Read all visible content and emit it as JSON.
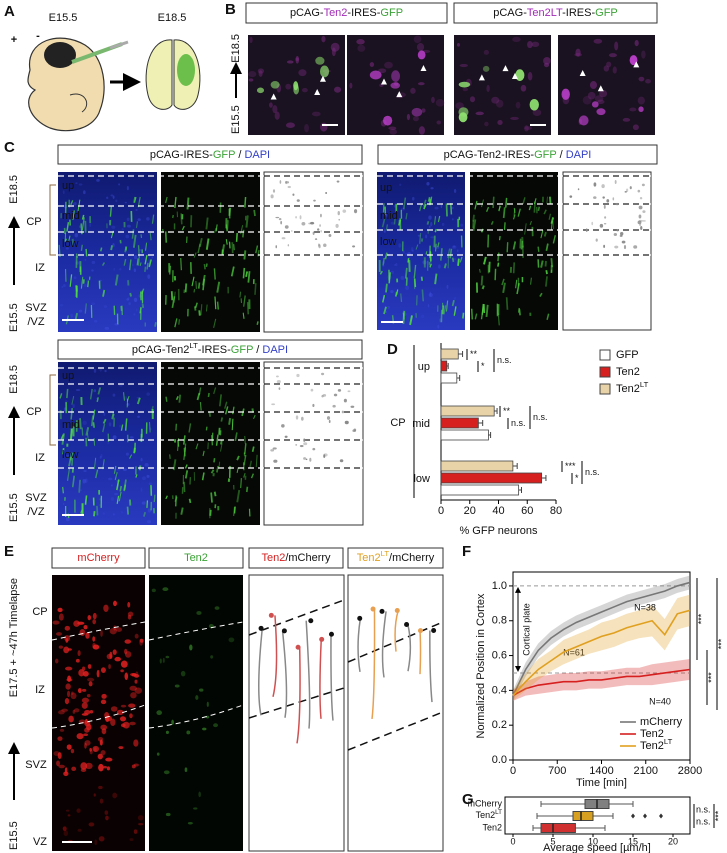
{
  "figure": {
    "panel_labels": {
      "a": "A",
      "b": "B",
      "c": "C",
      "d": "D",
      "e": "E",
      "f": "F",
      "g": "G"
    },
    "panel_a": {
      "stage_start": "E15.5",
      "stage_end": "E18.5",
      "plus": "+",
      "minus": "-"
    },
    "panel_b": {
      "constructs": [
        [
          {
            "text": "pCAG-"
          },
          {
            "text": "Ten2",
            "color": "#a22cb8"
          },
          {
            "text": "-IRES-"
          },
          {
            "text": "GFP",
            "color": "#3aa335"
          }
        ],
        [
          {
            "text": "pCAG-"
          },
          {
            "text": "Ten2LT",
            "color": "#a22cb8"
          },
          {
            "text": "-IRES-"
          },
          {
            "text": "GFP",
            "color": "#3aa335"
          }
        ]
      ],
      "stage_top": "E18.5",
      "stage_bottom": "E15.5"
    },
    "panel_c": {
      "titles": [
        [
          {
            "text": "pCAG-IRES-"
          },
          {
            "text": "GFP",
            "color": "#3aa335"
          },
          {
            "text": " / "
          },
          {
            "text": "DAPI",
            "color": "#3340c8"
          }
        ],
        [
          {
            "text": "pCAG-Ten2-IRES-"
          },
          {
            "text": "GFP",
            "color": "#3aa335"
          },
          {
            "text": " / "
          },
          {
            "text": "DAPI",
            "color": "#3340c8"
          }
        ],
        [
          {
            "text": "pCAG-Ten2"
          },
          {
            "text": "LT",
            "sup": true
          },
          {
            "text": "-IRES-"
          },
          {
            "text": "GFP",
            "color": "#3aa335"
          },
          {
            "text": " / "
          },
          {
            "text": "DAPI",
            "color": "#3340c8"
          }
        ]
      ],
      "stage_top": "E18.5",
      "stage_bottom": "E15.5",
      "zones": [
        "CP",
        "IZ",
        "SVZ",
        "/VZ"
      ],
      "bins": [
        "up",
        "mid",
        "low"
      ]
    },
    "panel_e": {
      "headers": [
        [
          {
            "text": "mCherry",
            "color": "#d42020"
          }
        ],
        [
          {
            "text": "Ten2",
            "color": "#3aa335"
          }
        ],
        [
          {
            "text": "Ten2",
            "color": "#d42020"
          },
          {
            "text": "/mCherry"
          }
        ],
        [
          {
            "text": "Ten2",
            "color": "#e0a020"
          },
          {
            "text": "LT",
            "sup": true,
            "color": "#e0a020"
          },
          {
            "text": "/mCherry"
          }
        ]
      ],
      "zones": [
        "CP",
        "IZ",
        "SVZ",
        "VZ"
      ],
      "stage_top": "E17.5 + ~47h Timelapse",
      "stage_bottom": "E15.5"
    }
  },
  "chart_data": [
    {
      "type": "bar",
      "orientation": "horizontal",
      "group_label": "CP",
      "categories": [
        "up",
        "mid",
        "low"
      ],
      "series": [
        {
          "name": "GFP",
          "color": "#ffffff",
          "values": [
            11,
            33,
            54
          ],
          "errors": [
            2,
            1.5,
            2
          ]
        },
        {
          "name": "Ten2",
          "color": "#d62020",
          "values": [
            4,
            26,
            70
          ],
          "errors": [
            1,
            3,
            3
          ]
        },
        {
          "name": "Ten2",
          "name_sup": "LT",
          "color": "#e8d3a8",
          "values": [
            12,
            37,
            50
          ],
          "errors": [
            3,
            2,
            3
          ]
        }
      ],
      "xlim": [
        0,
        80
      ],
      "xticks": [
        0,
        20,
        40,
        60,
        80
      ],
      "xlabel": "% GFP neurons",
      "significance": [
        "**",
        "*",
        "n.s.",
        "**",
        "n.s.",
        "n.s.",
        "***",
        "*",
        "n.s."
      ]
    },
    {
      "type": "line",
      "x": [
        0,
        200,
        400,
        600,
        800,
        1000,
        1200,
        1400,
        1600,
        1800,
        2000,
        2200,
        2400,
        2600,
        2800
      ],
      "series": [
        {
          "name": "mCherry",
          "color": "#777777",
          "n_label": "N=61",
          "values": [
            0.37,
            0.52,
            0.63,
            0.7,
            0.75,
            0.79,
            0.82,
            0.85,
            0.88,
            0.91,
            0.93,
            0.95,
            0.97,
            1.0,
            1.02
          ],
          "errors": [
            0.03,
            0.04,
            0.04,
            0.04,
            0.04,
            0.04,
            0.04,
            0.04,
            0.04,
            0.04,
            0.04,
            0.04,
            0.04,
            0.04,
            0.04
          ]
        },
        {
          "name": "Ten2",
          "color": "#d62020",
          "n_label": "N=40",
          "values": [
            0.37,
            0.41,
            0.43,
            0.44,
            0.45,
            0.45,
            0.46,
            0.46,
            0.47,
            0.48,
            0.48,
            0.49,
            0.5,
            0.51,
            0.52
          ],
          "errors": [
            0.03,
            0.04,
            0.05,
            0.05,
            0.05,
            0.05,
            0.05,
            0.05,
            0.05,
            0.05,
            0.05,
            0.06,
            0.06,
            0.06,
            0.06
          ]
        },
        {
          "name": "Ten2",
          "name_sup": "LT",
          "color": "#e0a020",
          "n_label": "N=38",
          "values": [
            0.37,
            0.45,
            0.52,
            0.57,
            0.62,
            0.65,
            0.68,
            0.71,
            0.73,
            0.76,
            0.78,
            0.8,
            0.72,
            0.84,
            0.86
          ],
          "errors": [
            0.03,
            0.05,
            0.06,
            0.06,
            0.07,
            0.07,
            0.07,
            0.08,
            0.08,
            0.08,
            0.08,
            0.09,
            0.09,
            0.09,
            0.09
          ]
        }
      ],
      "xlim": [
        0,
        2800
      ],
      "xticks": [
        0,
        700,
        1400,
        2100,
        2800
      ],
      "ylim": [
        0,
        1.08
      ],
      "yticks": [
        {
          "value": 0,
          "label": "0.0"
        },
        0.2,
        0.4,
        0.6,
        0.8,
        {
          "value": 1,
          "label": "1.0"
        }
      ],
      "xlabel": "Time [min]",
      "ylabel": "Normalized Position in Cortex",
      "reference_lines": [
        1,
        0.5
      ],
      "band_label": "Cortical plate",
      "significance": [
        "***",
        "***",
        "***"
      ]
    },
    {
      "type": "box",
      "orientation": "horizontal",
      "categories": [
        "mCherry",
        "Ten2",
        "Ten2"
      ],
      "category_sups": [
        null,
        "LT",
        null
      ],
      "boxes": [
        {
          "color": "#808080",
          "whisker_low": 3.5,
          "q1": 9,
          "median": 10.5,
          "q3": 12,
          "whisker_high": 15,
          "outliers": []
        },
        {
          "color": "#d8a020",
          "whisker_low": 3,
          "q1": 7.5,
          "median": 8.5,
          "q3": 10,
          "whisker_high": 12.5,
          "outliers": [
            15,
            16.5,
            18.5
          ]
        },
        {
          "color": "#d03030",
          "whisker_low": 2.5,
          "q1": 3.5,
          "median": 5,
          "q3": 7.8,
          "whisker_high": 11.5,
          "outliers": []
        }
      ],
      "xlim": [
        0,
        20
      ],
      "xticks": [
        0,
        5,
        10,
        15,
        20
      ],
      "xlabel": "Average speed [µm/h]",
      "significance": [
        "n.s.",
        "n.s.",
        "***"
      ]
    }
  ]
}
